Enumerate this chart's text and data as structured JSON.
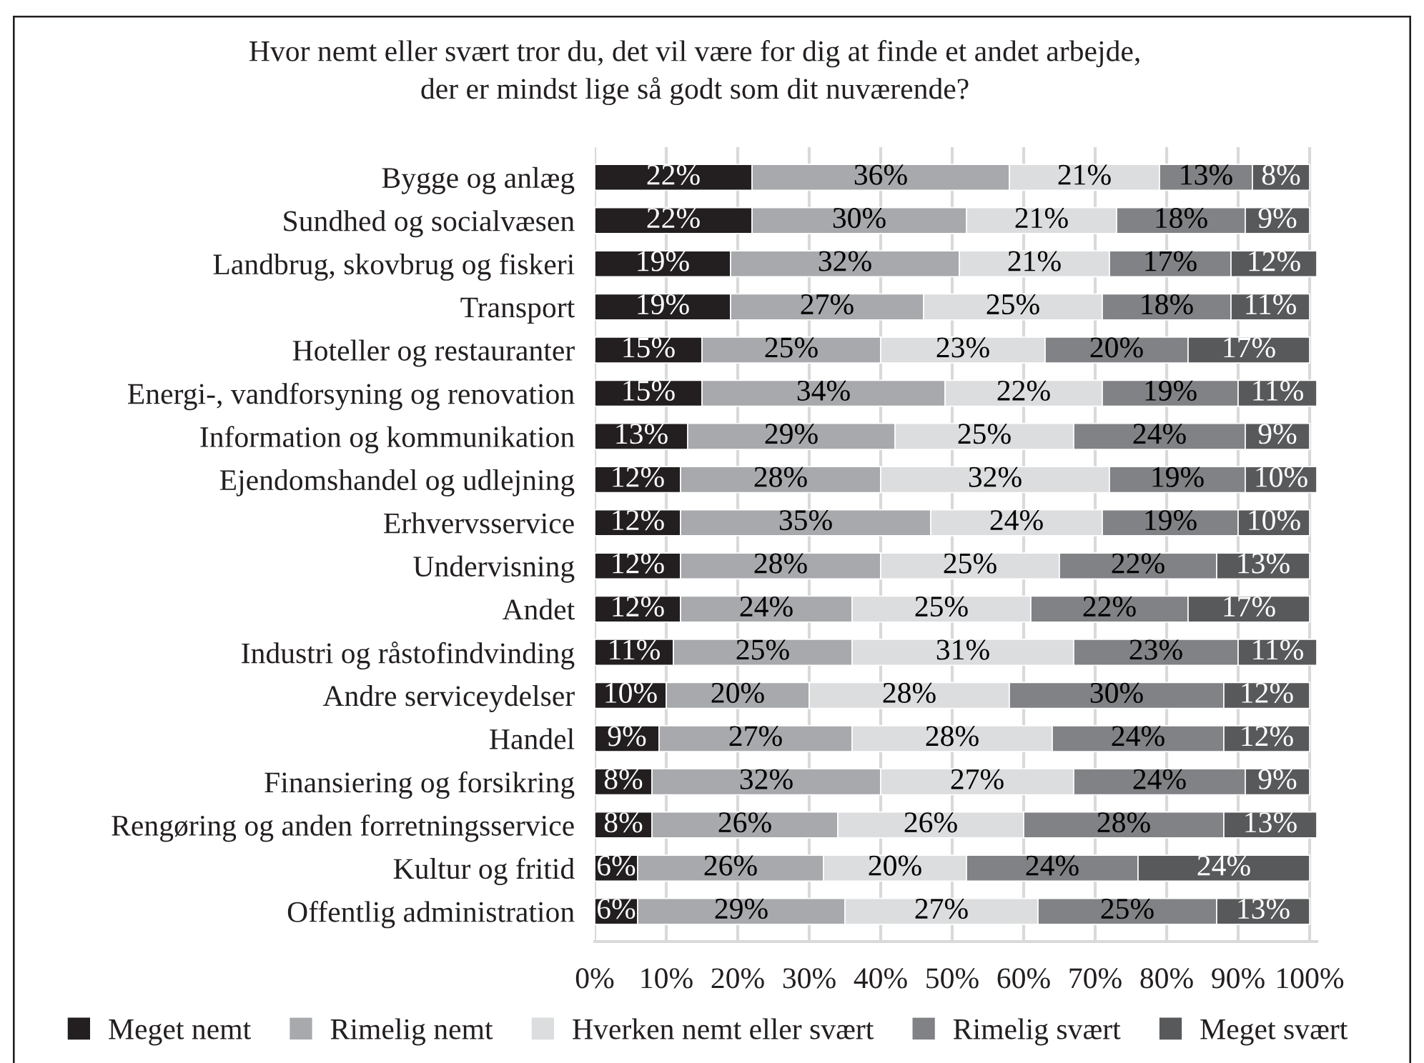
{
  "chart_data": {
    "type": "bar",
    "orientation": "horizontal",
    "stacked": true,
    "title": "Hvor nemt eller svært tror du, det vil være for dig at finde et andet arbejde,\nder er mindst lige så godt som dit nuværende?",
    "categories": [
      "Bygge og anlæg",
      "Sundhed og socialvæsen",
      "Landbrug, skovbrug og fiskeri",
      "Transport",
      "Hoteller og restauranter",
      "Energi-, vandforsyning og renovation",
      "Information og kommunikation",
      "Ejendomshandel og udlejning",
      "Erhvervsservice",
      "Undervisning",
      "Andet",
      "Industri og råstofindvinding",
      "Andre serviceydelser",
      "Handel",
      "Finansiering og forsikring",
      "Rengøring og anden forretningsservice",
      "Kultur og fritid",
      "Offentlig administration"
    ],
    "series": [
      {
        "name": "Meget nemt",
        "color": "#231f20",
        "values": [
          22,
          22,
          19,
          19,
          15,
          15,
          13,
          12,
          12,
          12,
          12,
          11,
          10,
          9,
          8,
          8,
          6,
          6
        ],
        "value_labels": [
          "22%",
          "22%",
          "19%",
          "19%",
          "15%",
          "15%",
          "13%",
          "12%",
          "12%",
          "12%",
          "12%",
          "11%",
          "10%",
          "9%",
          "8%",
          "8%",
          "6%",
          "6%"
        ]
      },
      {
        "name": "Rimelig nemt",
        "color": "#a7a9ac",
        "values": [
          36,
          30,
          32,
          27,
          25,
          34,
          29,
          28,
          35,
          28,
          24,
          25,
          20,
          27,
          32,
          26,
          26,
          29
        ],
        "value_labels": [
          "36%",
          "30%",
          "32%",
          "27%",
          "25%",
          "34%",
          "29%",
          "28%",
          "35%",
          "28%",
          "24%",
          "25%",
          "20%",
          "27%",
          "32%",
          "26%",
          "26%",
          "29%"
        ]
      },
      {
        "name": "Hverken nemt eller svært",
        "color": "#dcddde",
        "values": [
          21,
          21,
          21,
          25,
          23,
          22,
          25,
          32,
          24,
          25,
          25,
          31,
          28,
          28,
          27,
          26,
          20,
          27
        ],
        "value_labels": [
          "21%",
          "21%",
          "21%",
          "25%",
          "23%",
          "22%",
          "25%",
          "32%",
          "24%",
          "25%",
          "25%",
          "31%",
          "28%",
          "28%",
          "27%",
          "26%",
          "20%",
          "27%"
        ]
      },
      {
        "name": "Rimelig svært",
        "color": "#808285",
        "values": [
          13,
          18,
          17,
          18,
          20,
          19,
          24,
          19,
          19,
          22,
          22,
          23,
          30,
          24,
          24,
          28,
          24,
          25
        ],
        "value_labels": [
          "13%",
          "18%",
          "17%",
          "18%",
          "20%",
          "19%",
          "24%",
          "19%",
          "19%",
          "22%",
          "22%",
          "23%",
          "30%",
          "24%",
          "24%",
          "28%",
          "24%",
          "25%"
        ]
      },
      {
        "name": "Meget svært",
        "color": "#58595b",
        "values": [
          8,
          9,
          12,
          11,
          17,
          11,
          9,
          10,
          10,
          13,
          17,
          11,
          12,
          12,
          9,
          13,
          24,
          13
        ],
        "value_labels": [
          "8%",
          "9%",
          "12%",
          "11%",
          "17%",
          "11%",
          "9%",
          "10%",
          "10%",
          "13%",
          "17%",
          "11%",
          "12%",
          "12%",
          "9%",
          "13%",
          "24%",
          "13%"
        ]
      }
    ],
    "xlim": [
      0,
      101
    ],
    "xticks": [
      {
        "value": 0,
        "label": "0%"
      },
      {
        "value": 10,
        "label": "10%"
      },
      {
        "value": 20,
        "label": "20%"
      },
      {
        "value": 30,
        "label": "30%"
      },
      {
        "value": 40,
        "label": "40%"
      },
      {
        "value": 50,
        "label": "50%"
      },
      {
        "value": 60,
        "label": "60%"
      },
      {
        "value": 70,
        "label": "70%"
      },
      {
        "value": 80,
        "label": "80%"
      },
      {
        "value": 90,
        "label": "90%"
      },
      {
        "value": 100,
        "label": "100%"
      }
    ],
    "grid": "x",
    "legend": "bottom"
  }
}
